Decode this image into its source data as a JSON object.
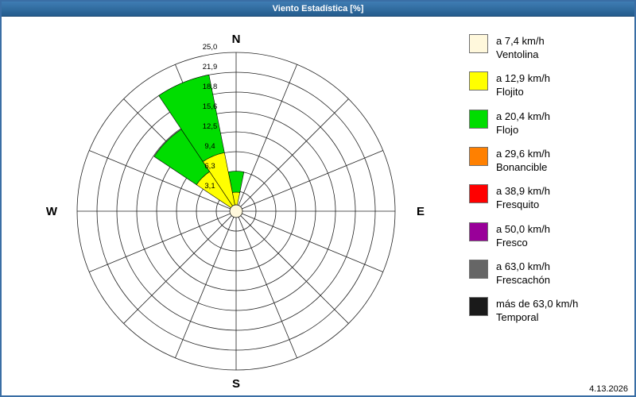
{
  "window": {
    "title": "Viento Estadística [%]"
  },
  "footer": {
    "date": "4.13.2026"
  },
  "chart_data": {
    "type": "windrose",
    "title": "Viento Estadística [%]",
    "units": "%",
    "rmax": 25,
    "ring_step": 3.125,
    "grid": true,
    "legend_position": "right",
    "radial_ticks": [
      "3,1",
      "6,3",
      "9,4",
      "12,5",
      "15,6",
      "18,8",
      "21,9",
      "25,0"
    ],
    "compass_labels": {
      "N": "N",
      "E": "E",
      "S": "S",
      "W": "W"
    },
    "calm_center_pct": 1.0,
    "directions": [
      "N",
      "NNE",
      "NE",
      "ENE",
      "E",
      "ESE",
      "SE",
      "SSE",
      "S",
      "SSW",
      "SW",
      "WSW",
      "W",
      "WNW",
      "NW",
      "NNW"
    ],
    "speed_bins": [
      {
        "label": "a 7,4 km/h",
        "name": "Ventolina",
        "color": "#FFF8DC"
      },
      {
        "label": "a 12,9 km/h",
        "name": "Flojito",
        "color": "#FFFF00"
      },
      {
        "label": "a 20,4 km/h",
        "name": "Flojo",
        "color": "#00DD00"
      },
      {
        "label": "a 29,6 km/h",
        "name": "Bonancible",
        "color": "#FF8000"
      },
      {
        "label": "a 38,9 km/h",
        "name": "Fresquito",
        "color": "#FF0000"
      },
      {
        "label": "a 50,0 km/h",
        "name": "Fresco",
        "color": "#990099"
      },
      {
        "label": "a 63,0 km/h",
        "name": "Frescachón",
        "color": "#666666"
      },
      {
        "label": "más de 63,0 km/h",
        "name": "Temporal",
        "color": "#1A1A1A"
      }
    ],
    "series": [
      {
        "name": "Ventolina",
        "values": [
          0.4,
          0,
          0,
          0,
          0,
          0,
          0,
          0,
          0,
          0,
          0,
          0,
          0,
          0,
          0.6,
          0.6
        ]
      },
      {
        "name": "Flojito",
        "values": [
          2.6,
          0,
          0,
          0,
          0,
          0,
          0,
          0,
          0,
          0,
          0,
          0,
          0,
          0,
          6.9,
          8.8
        ]
      },
      {
        "name": "Flojo",
        "values": [
          3.3,
          0,
          0,
          0,
          0,
          0,
          0,
          0,
          0,
          0,
          0,
          0,
          0,
          0,
          8.0,
          12.5
        ]
      },
      {
        "name": "Bonancible",
        "values": [
          0,
          0,
          0,
          0,
          0,
          0,
          0,
          0,
          0,
          0,
          0,
          0,
          0,
          0,
          0,
          0
        ]
      },
      {
        "name": "Fresquito",
        "values": [
          0,
          0,
          0,
          0,
          0,
          0,
          0,
          0,
          0,
          0,
          0,
          0,
          0,
          0,
          0,
          0
        ]
      },
      {
        "name": "Fresco",
        "values": [
          0,
          0,
          0,
          0,
          0,
          0,
          0,
          0,
          0,
          0,
          0,
          0,
          0,
          0,
          0,
          0
        ]
      },
      {
        "name": "Frescachón",
        "values": [
          0,
          0,
          0,
          0,
          0,
          0,
          0,
          0,
          0,
          0,
          0,
          0,
          0,
          0,
          0,
          0
        ]
      },
      {
        "name": "Temporal",
        "values": [
          0,
          0,
          0,
          0,
          0,
          0,
          0,
          0,
          0,
          0,
          0,
          0,
          0,
          0,
          0,
          0
        ]
      }
    ]
  }
}
